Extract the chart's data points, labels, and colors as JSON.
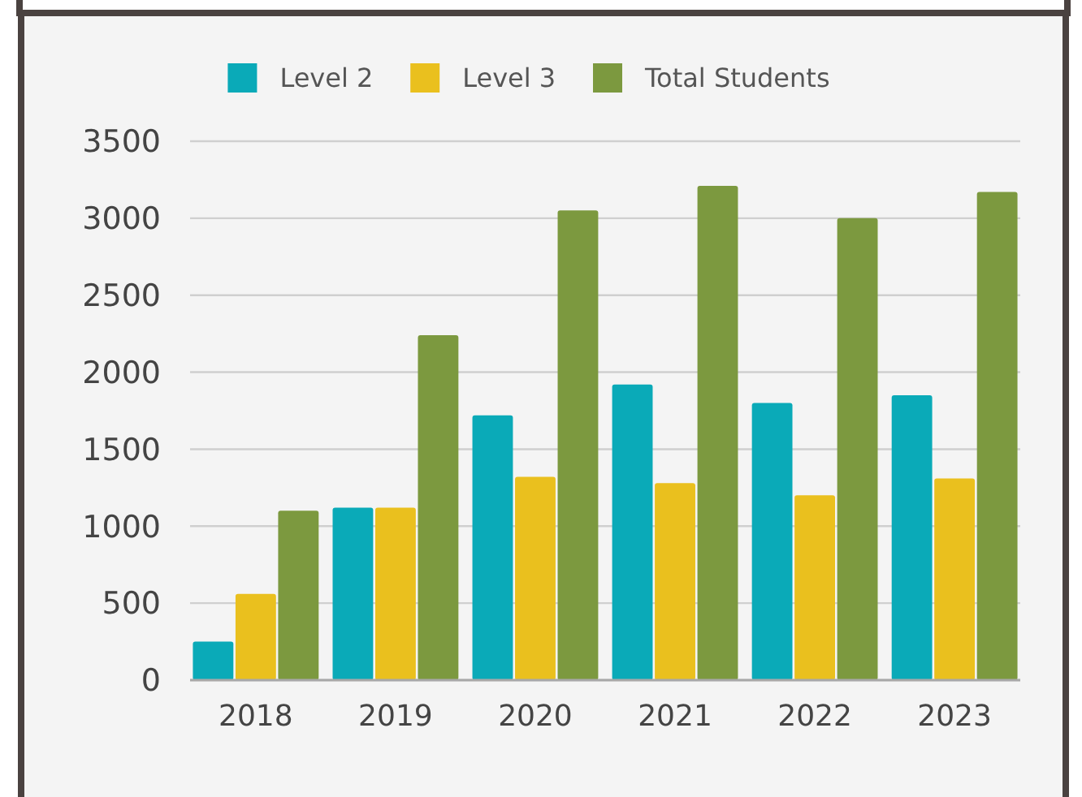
{
  "chart_data": {
    "type": "bar",
    "categories": [
      "2018",
      "2019",
      "2020",
      "2021",
      "2022",
      "2023"
    ],
    "series": [
      {
        "name": "Level 2",
        "color": "#0aaab8",
        "values": [
          250,
          1120,
          1720,
          1920,
          1800,
          1850
        ]
      },
      {
        "name": "Level 3",
        "color": "#eac01e",
        "values": [
          560,
          1120,
          1320,
          1280,
          1200,
          1310
        ]
      },
      {
        "name": "Total Students",
        "color": "#7c993f",
        "values": [
          1100,
          2240,
          3050,
          3210,
          3000,
          3170
        ]
      }
    ],
    "ylim": [
      0,
      3500
    ],
    "yticks": [
      0,
      500,
      1000,
      1500,
      2000,
      2500,
      3000,
      3500
    ],
    "grid": "y",
    "legend": "top"
  }
}
